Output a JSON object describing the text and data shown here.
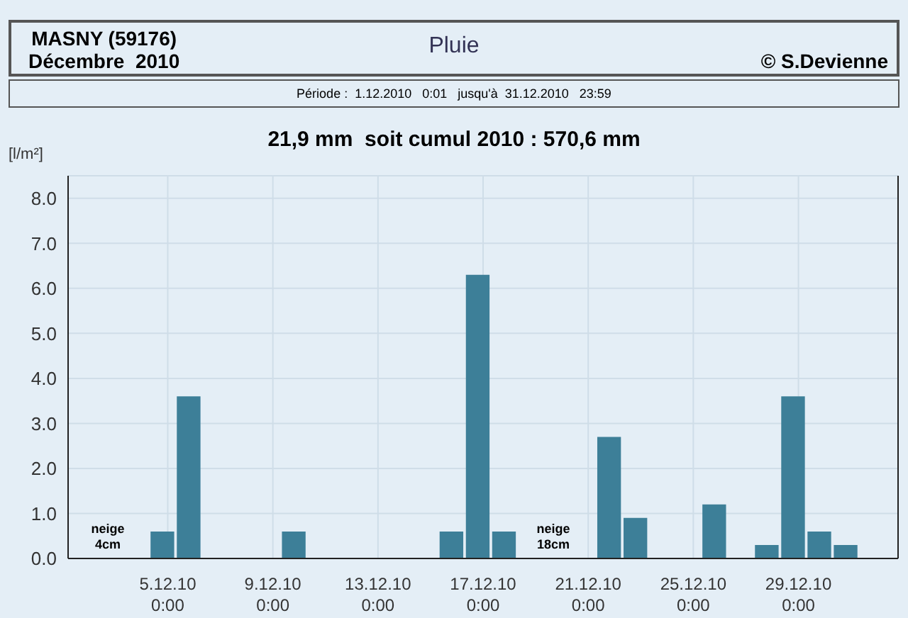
{
  "chart_data": {
    "type": "bar",
    "title": "Pluie",
    "subtitle": "Période :  1.12.2010   0:01   jusqu'à  31.12.2010   23:59",
    "ylabel": "[l/m²]",
    "annotations": [
      "MASNY (59176)",
      "Décembre  2010",
      "© S.Devienne",
      "21,9 mm  soit cumul 2010 : 570,6 mm",
      "neige 4cm",
      "neige 18cm"
    ],
    "x": [
      "2010-12-04T19:00",
      "2010-12-05T19:00",
      "2010-12-09T19:00",
      "2010-12-15T19:00",
      "2010-12-16T19:00",
      "2010-12-17T19:00",
      "2010-12-21T19:00",
      "2010-12-22T19:00",
      "2010-12-25T19:00",
      "2010-12-27T19:00",
      "2010-12-28T19:00",
      "2010-12-29T19:00",
      "2010-12-30T19:00"
    ],
    "values": [
      0.6,
      3.6,
      0.6,
      0.6,
      6.3,
      0.6,
      2.7,
      0.9,
      1.2,
      0.3,
      3.6,
      0.6,
      0.3
    ],
    "color": "#3d7f98",
    "xlim": [
      "2010-12-01T05:00",
      "2011-01-01T19:00"
    ],
    "xticks": [
      {
        "value": "2010-12-05",
        "label": "5.12.10\n0:00"
      },
      {
        "value": "2010-12-09",
        "label": "9.12.10\n0:00"
      },
      {
        "value": "2010-12-13",
        "label": "13.12.10\n0:00"
      },
      {
        "value": "2010-12-17",
        "label": "17.12.10\n0:00"
      },
      {
        "value": "2010-12-21",
        "label": "21.12.10\n0:00"
      },
      {
        "value": "2010-12-25",
        "label": "25.12.10\n0:00"
      },
      {
        "value": "2010-12-29",
        "label": "29.12.10\n0:00"
      }
    ],
    "ylim": [
      0,
      8.5
    ],
    "yticks": [
      {
        "value": 0,
        "label": "0.0"
      },
      {
        "value": 1,
        "label": "1.0"
      },
      {
        "value": 2,
        "label": "2.0"
      },
      {
        "value": 3,
        "label": "3.0"
      },
      {
        "value": 4,
        "label": "4.0"
      },
      {
        "value": 5,
        "label": "5.0"
      },
      {
        "value": 6,
        "label": "6.0"
      },
      {
        "value": 7,
        "label": "7.0"
      },
      {
        "value": 8,
        "label": "8.0"
      }
    ],
    "grid": true
  }
}
